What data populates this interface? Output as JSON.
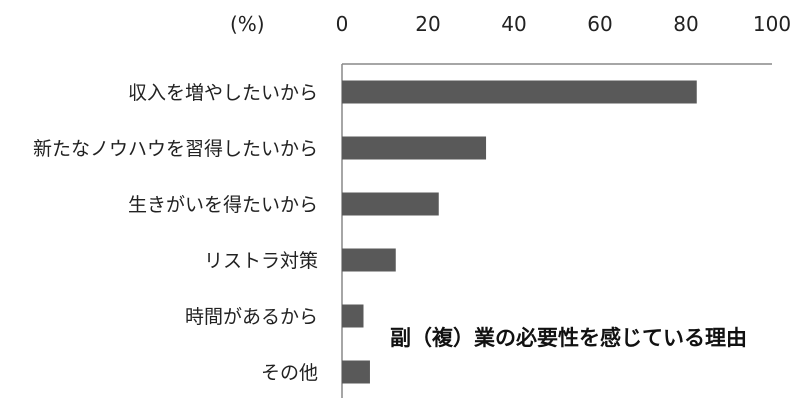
{
  "chart_data": {
    "type": "bar",
    "orientation": "horizontal",
    "title": "副（複）業の必要性を感じている理由",
    "unit_label": "(%)",
    "categories": [
      "収入を増やしたいから",
      "新たなノウハウを習得したいから",
      "生きがいを得たいから",
      "リストラ対策",
      "時間があるから",
      "その他"
    ],
    "values": [
      82.5,
      33.5,
      22.5,
      12.5,
      5,
      6.5
    ],
    "xlim": [
      0,
      100
    ],
    "xticks": [
      0,
      20,
      40,
      60,
      80,
      100
    ],
    "xtick_labels": [
      "0",
      "20",
      "40",
      "60",
      "80",
      "100"
    ],
    "grid": false,
    "legend": "none",
    "bar_color": "#595959",
    "axis_color": "#888888"
  }
}
